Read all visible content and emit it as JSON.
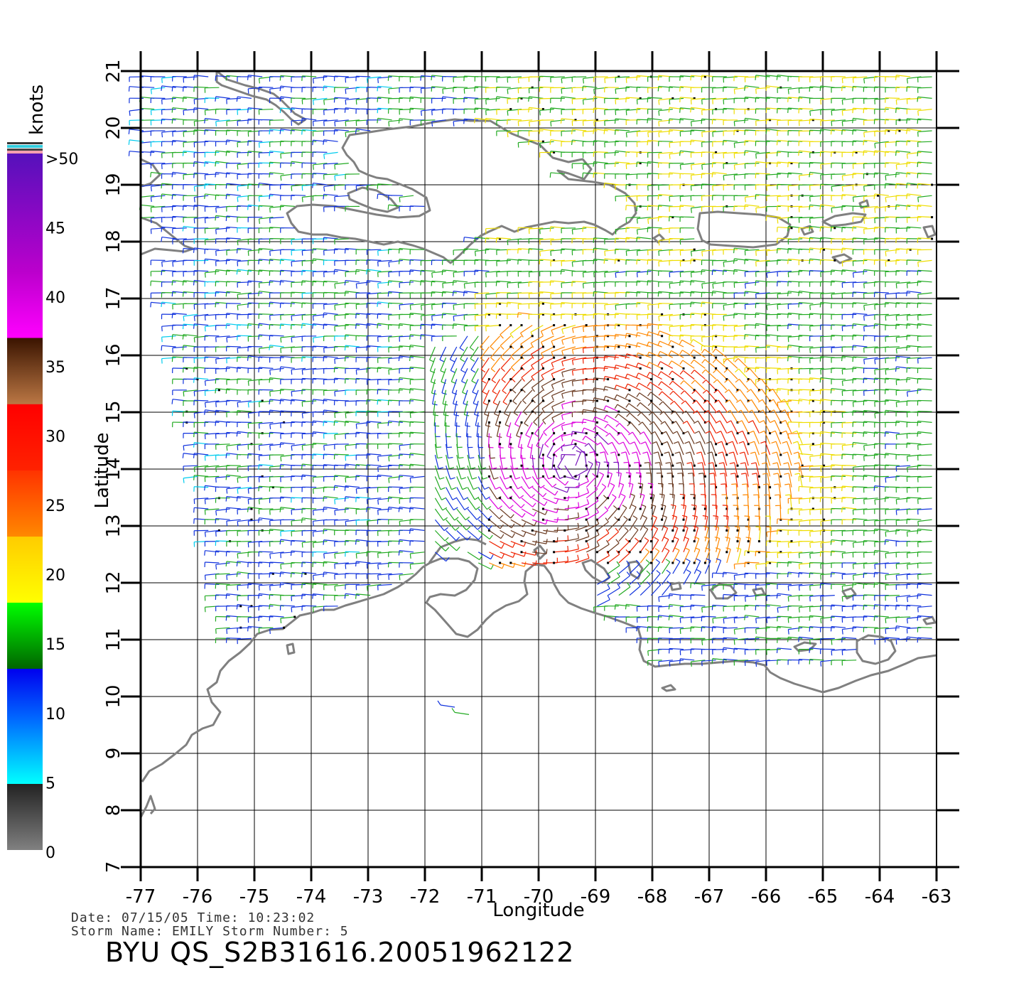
{
  "map": {
    "projection": "plate carree",
    "lon_range": [
      -77,
      -63
    ],
    "lat_range": [
      7,
      21
    ],
    "lon_ticks": [
      "-77",
      "-76",
      "-75",
      "-74",
      "-73",
      "-72",
      "-71",
      "-70",
      "-69",
      "-68",
      "-67",
      "-66",
      "-65",
      "-64",
      "-63"
    ],
    "lat_ticks": [
      "7",
      "8",
      "9",
      "10",
      "11",
      "12",
      "13",
      "14",
      "15",
      "16",
      "17",
      "18",
      "19",
      "20",
      "21"
    ],
    "xlabel": "Longitude",
    "ylabel": "Latitude",
    "grid": true,
    "coastline_color": "#808080"
  },
  "colorbar": {
    "title": "knots",
    "labels": [
      ">50",
      "45",
      "40",
      "35",
      "30",
      "25",
      "20",
      "15",
      "10",
      "5",
      "0"
    ],
    "bands": [
      {
        "from": 0,
        "to": 5,
        "colors": [
          "#808080",
          "#222222"
        ]
      },
      {
        "from": 5,
        "to": 10,
        "colors": [
          "#00ffff",
          "#0066ff"
        ]
      },
      {
        "from": 10,
        "to": 15,
        "colors": [
          "#0066ff",
          "#0000ee"
        ]
      },
      {
        "from": 15,
        "to": 20,
        "colors": [
          "#006400",
          "#00ff00"
        ]
      },
      {
        "from": 20,
        "to": 25,
        "colors": [
          "#ffff00",
          "#ffcc00"
        ]
      },
      {
        "from": 25,
        "to": 30,
        "colors": [
          "#ff8800",
          "#ff4400"
        ]
      },
      {
        "from": 30,
        "to": 35,
        "colors": [
          "#ff3300",
          "#ff0000"
        ]
      },
      {
        "from": 35,
        "to": 40,
        "colors": [
          "#bb7744",
          "#3a1400"
        ]
      },
      {
        "from": 40,
        "to": 45,
        "colors": [
          "#ff00ff",
          "#cc00cc"
        ]
      },
      {
        "from": 45,
        "to": 50,
        "colors": [
          "#bb00cc",
          "#6611bb"
        ]
      }
    ]
  },
  "wind_field": {
    "storm_center": [
      -69.4,
      14.1
    ],
    "colors": {
      "0-5": "#444444",
      "5-10": "#00ccee",
      "10-15": "#1133dd",
      "15-20": "#22aa22",
      "20-25": "#eedd00",
      "25-30": "#ff8800",
      "30-35": "#ee2200",
      "35-40": "#6a3a20",
      "40-45": "#dd00dd",
      "45-50": "#7711bb"
    },
    "rain_flag_color": "#000000"
  },
  "info": {
    "date_line": "Date: 07/15/05   Time: 10:23:02",
    "storm_line": "Storm  Name:  EMILY    Storm  Number:  5",
    "file_id": "BYU  QS_S2B31616.20051962122"
  }
}
